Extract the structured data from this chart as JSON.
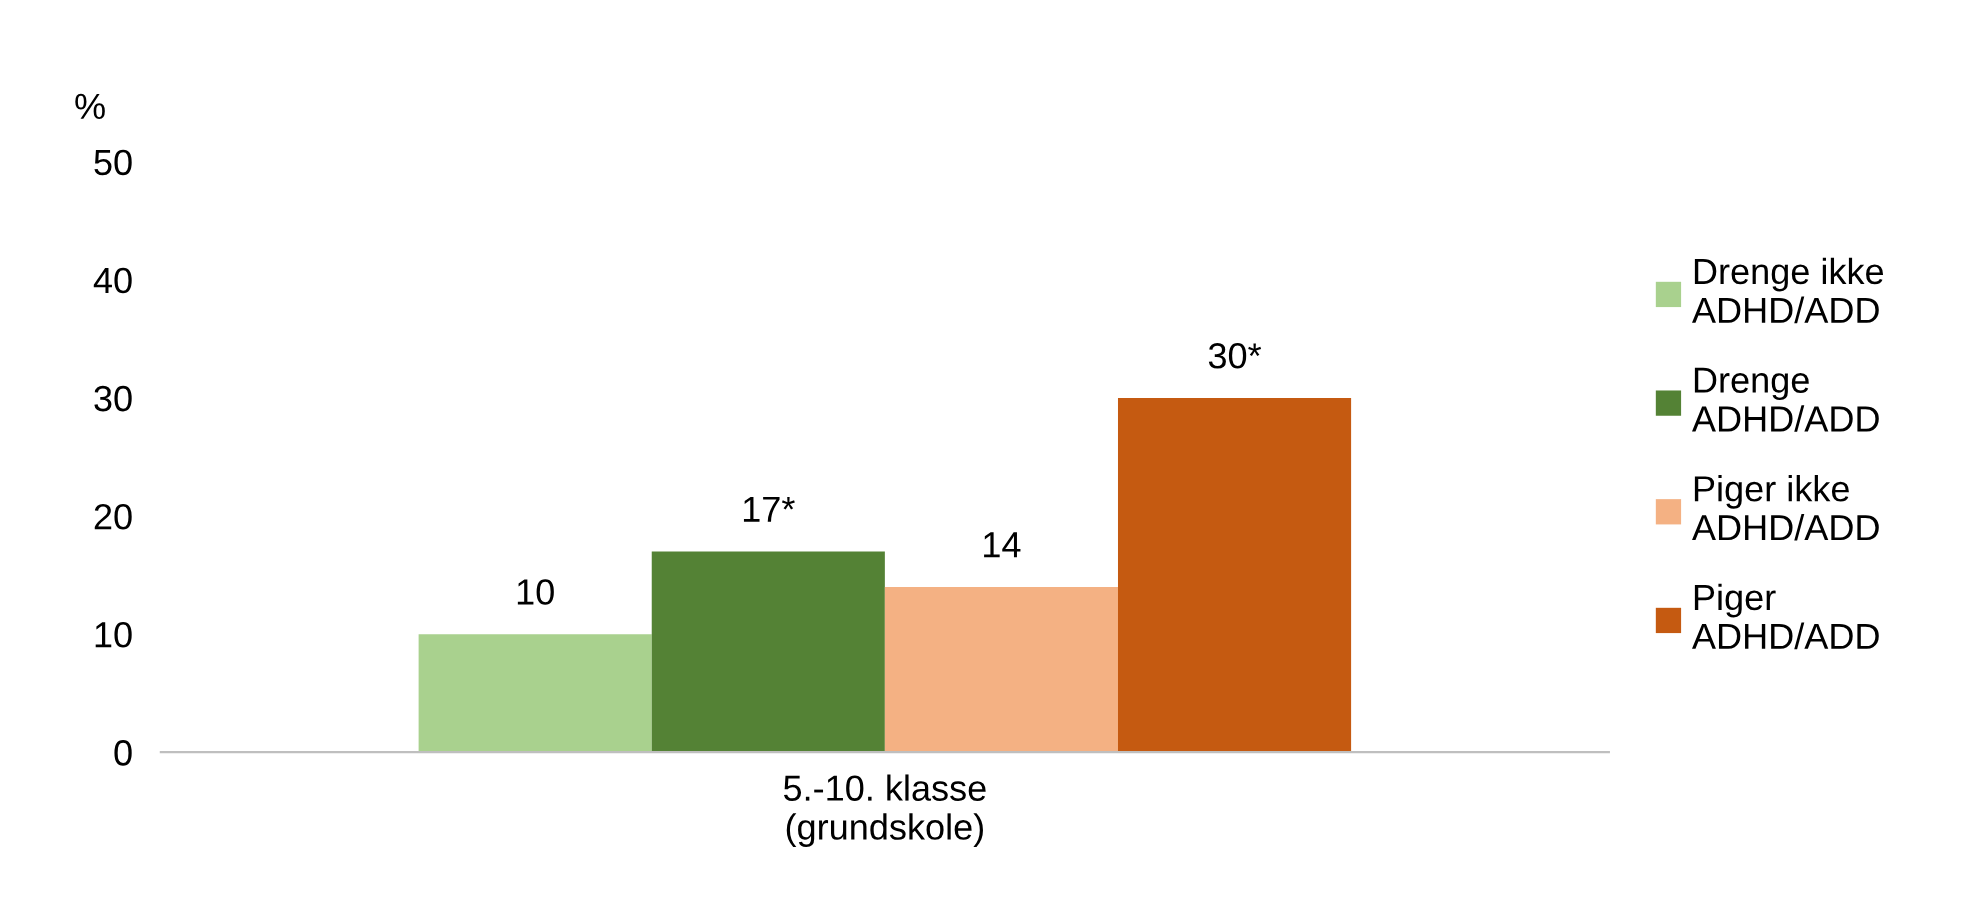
{
  "chart_data": {
    "type": "bar",
    "ylabel": "%",
    "categories": [
      "5.-10. klasse\n(grundskole)"
    ],
    "series": [
      {
        "name": "Drenge ikke\nADHD/ADD",
        "color": "#a9d18e",
        "values": [
          10
        ],
        "value_labels": [
          "10"
        ]
      },
      {
        "name": "Drenge\nADHD/ADD",
        "color": "#548235",
        "values": [
          17
        ],
        "value_labels": [
          "17*"
        ]
      },
      {
        "name": "Piger ikke\nADHD/ADD",
        "color": "#f4b183",
        "values": [
          14
        ],
        "value_labels": [
          "14"
        ]
      },
      {
        "name": "Piger\nADHD/ADD",
        "color": "#c55a11",
        "values": [
          30
        ],
        "value_labels": [
          "30*"
        ]
      }
    ],
    "ylim": [
      0,
      50
    ],
    "yticks": [
      0,
      10,
      20,
      30,
      40,
      50
    ],
    "grid": false,
    "legend": "right"
  }
}
